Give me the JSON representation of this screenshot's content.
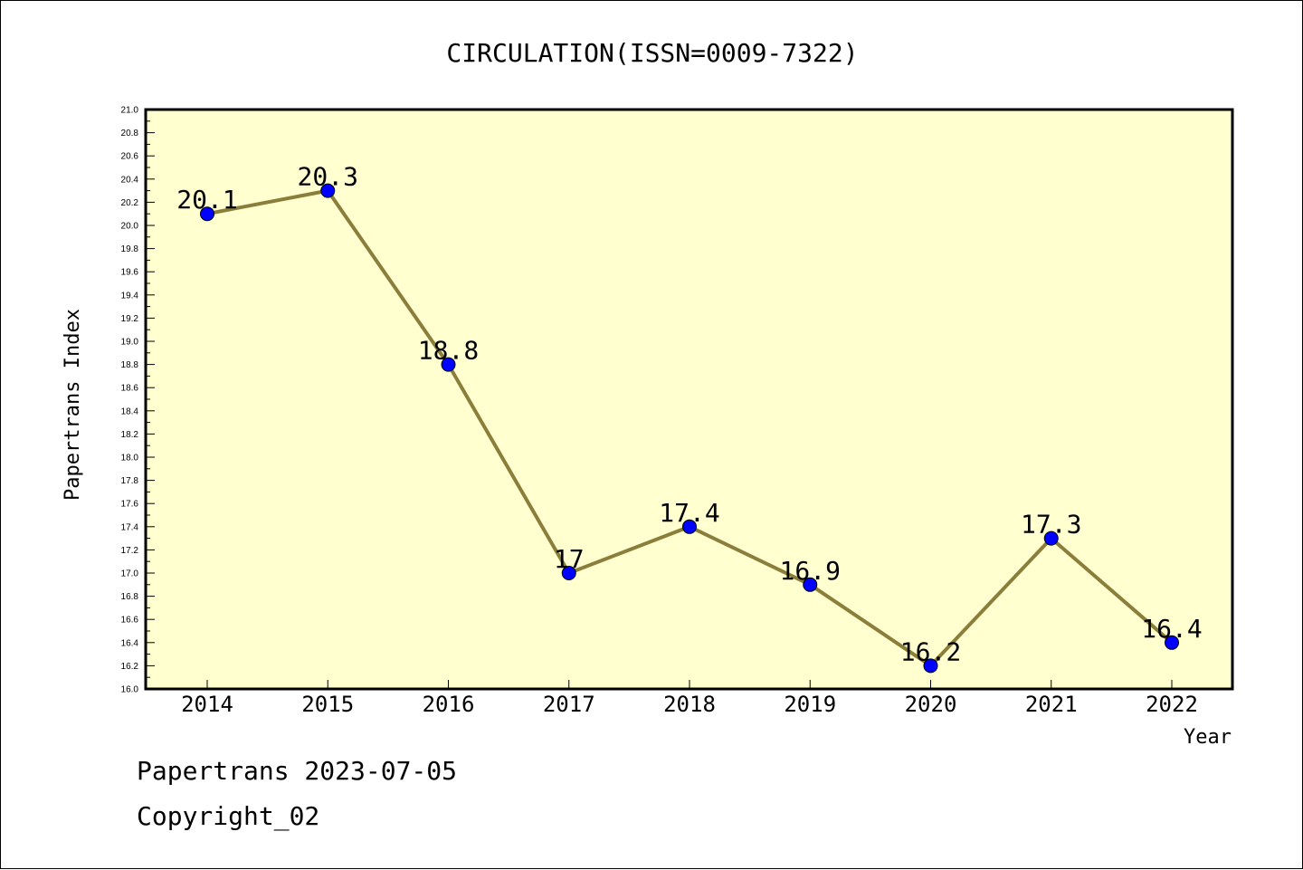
{
  "chart_data": {
    "type": "line",
    "title": "CIRCULATION(ISSN=0009-7322)",
    "xlabel": "Year",
    "ylabel": "Papertrans Index",
    "categories": [
      "2014",
      "2015",
      "2016",
      "2017",
      "2018",
      "2019",
      "2020",
      "2021",
      "2022"
    ],
    "values": [
      20.1,
      20.3,
      18.8,
      17,
      17.4,
      16.9,
      16.2,
      17.3,
      16.4
    ],
    "data_labels": [
      "20.1",
      "20.3",
      "18.8",
      "17",
      "17.4",
      "16.9",
      "16.2",
      "17.3",
      "16.4"
    ],
    "ylim": [
      16.0,
      21.0
    ],
    "y_ticks": [
      "16.0",
      "16.2",
      "16.4",
      "16.6",
      "16.8",
      "17.0",
      "17.2",
      "17.4",
      "17.6",
      "17.8",
      "18.0",
      "18.2",
      "18.4",
      "18.6",
      "18.8",
      "19.0",
      "19.2",
      "19.4",
      "19.6",
      "19.8",
      "20.0",
      "20.2",
      "20.4",
      "20.6",
      "20.8",
      "21.0"
    ],
    "grid": false,
    "legend": "none",
    "colors": {
      "plot_background": "#ffffd0",
      "line": "#8b7d3a",
      "marker": "#0000ff"
    }
  },
  "footer": {
    "line1": "Papertrans 2023-07-05",
    "line2": "Copyright_02"
  }
}
